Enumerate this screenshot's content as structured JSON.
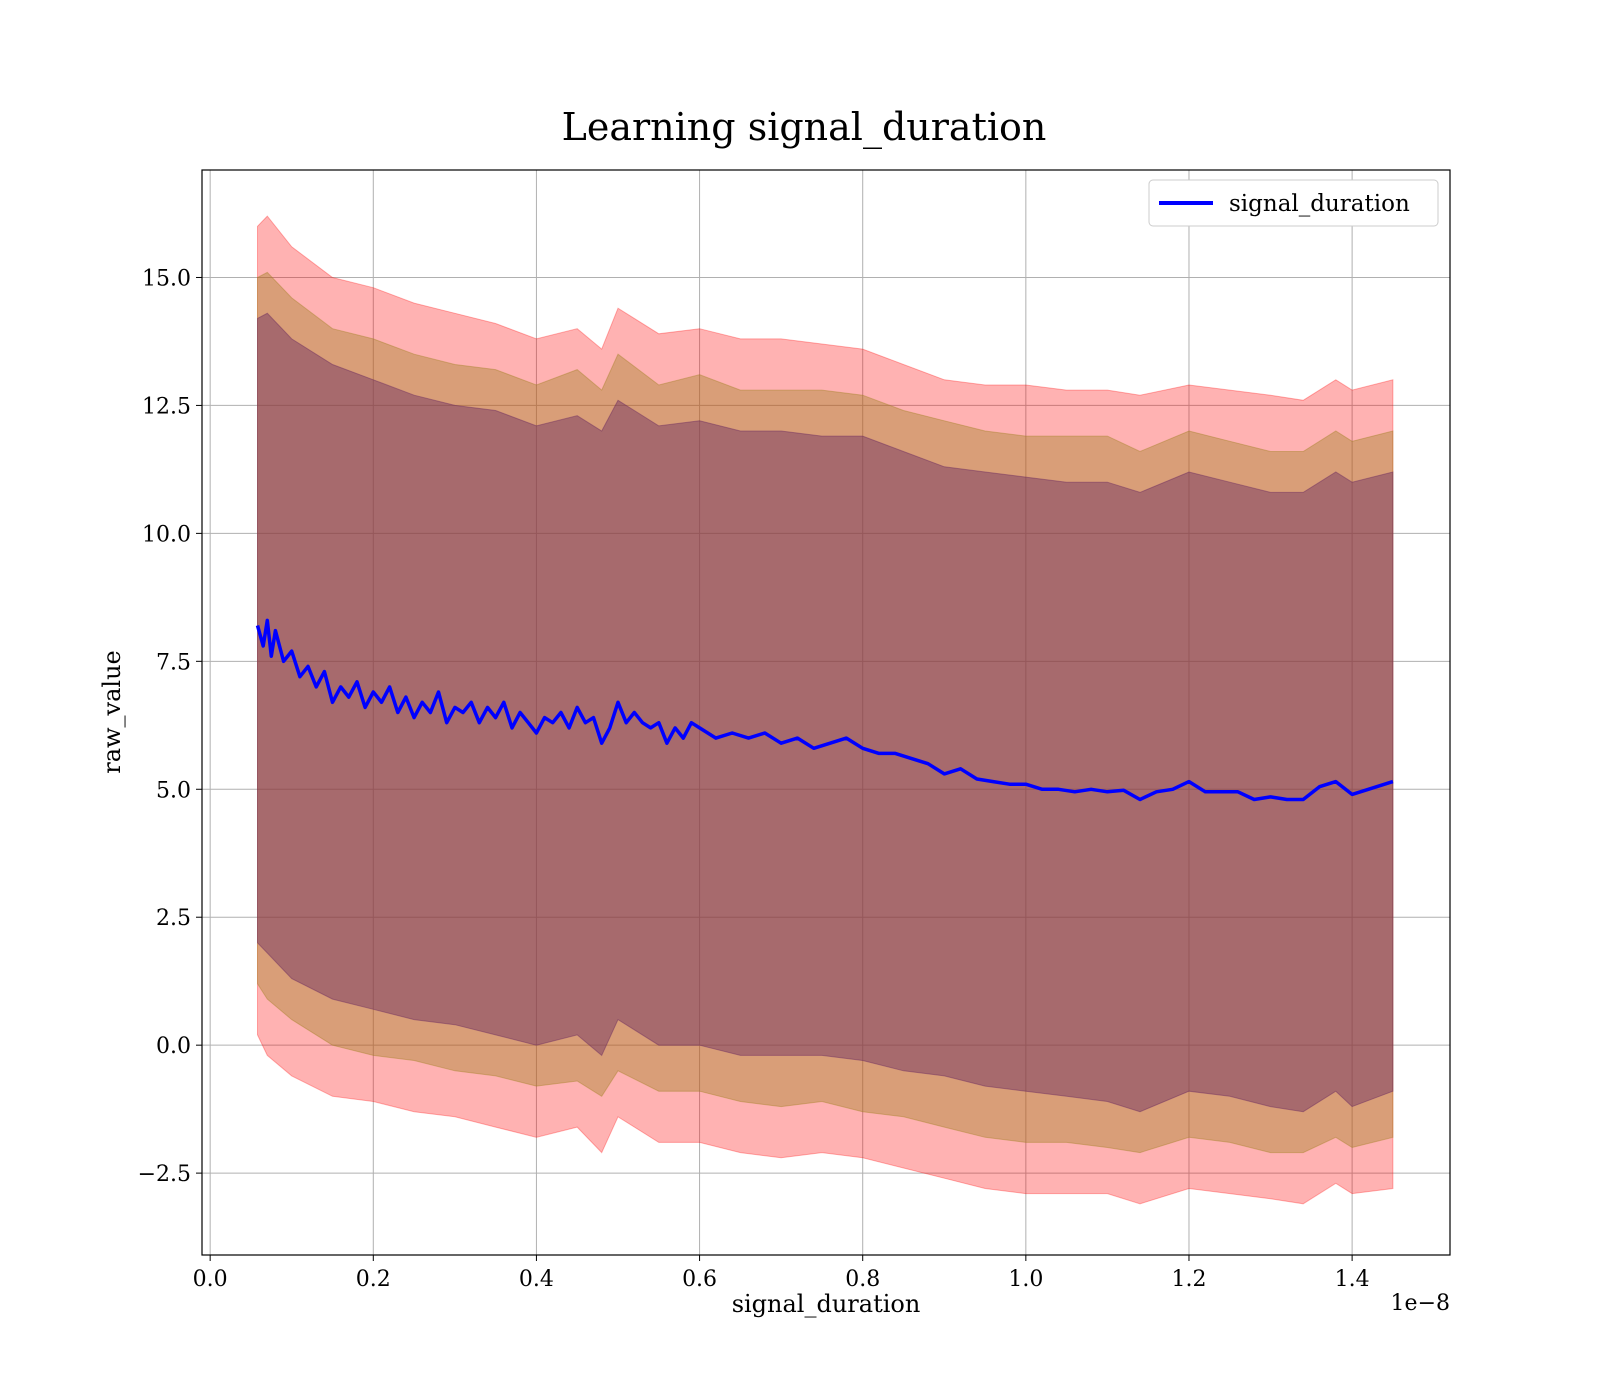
{
  "chart_data": {
    "type": "line",
    "title": "Learning signal_duration",
    "xlabel": "signal_duration",
    "ylabel": "raw_value",
    "x_offset_label": "1e−8",
    "xlim": [
      -0.01,
      1.52
    ],
    "ylim": [
      -4.1,
      17.1
    ],
    "x_ticks": [
      0.0,
      0.2,
      0.4,
      0.6,
      0.8,
      1.0,
      1.2,
      1.4
    ],
    "x_tick_labels": [
      "0.0",
      "0.2",
      "0.4",
      "0.6",
      "0.8",
      "1.0",
      "1.2",
      "1.4"
    ],
    "y_ticks": [
      -2.5,
      0.0,
      2.5,
      5.0,
      7.5,
      10.0,
      12.5,
      15.0
    ],
    "y_tick_labels": [
      "−2.5",
      "0.0",
      "2.5",
      "5.0",
      "7.5",
      "10.0",
      "12.5",
      "15.0"
    ],
    "grid": true,
    "legend_position": "top-right",
    "series": [
      {
        "name": "signal_duration",
        "color": "#0000ff",
        "x": [
          0.058,
          0.065,
          0.07,
          0.075,
          0.08,
          0.09,
          0.1,
          0.11,
          0.12,
          0.13,
          0.14,
          0.15,
          0.16,
          0.17,
          0.18,
          0.19,
          0.2,
          0.21,
          0.22,
          0.23,
          0.24,
          0.25,
          0.26,
          0.27,
          0.28,
          0.29,
          0.3,
          0.31,
          0.32,
          0.33,
          0.34,
          0.35,
          0.36,
          0.37,
          0.38,
          0.39,
          0.4,
          0.41,
          0.42,
          0.43,
          0.44,
          0.45,
          0.46,
          0.47,
          0.48,
          0.49,
          0.5,
          0.51,
          0.52,
          0.53,
          0.54,
          0.55,
          0.56,
          0.57,
          0.58,
          0.59,
          0.6,
          0.62,
          0.64,
          0.66,
          0.68,
          0.7,
          0.72,
          0.74,
          0.76,
          0.78,
          0.8,
          0.82,
          0.84,
          0.86,
          0.88,
          0.9,
          0.92,
          0.94,
          0.96,
          0.98,
          1.0,
          1.02,
          1.04,
          1.06,
          1.08,
          1.1,
          1.12,
          1.14,
          1.16,
          1.18,
          1.2,
          1.22,
          1.24,
          1.26,
          1.28,
          1.3,
          1.32,
          1.34,
          1.36,
          1.38,
          1.4,
          1.42,
          1.45
        ],
        "y": [
          8.2,
          7.8,
          8.3,
          7.6,
          8.1,
          7.5,
          7.7,
          7.2,
          7.4,
          7.0,
          7.3,
          6.7,
          7.0,
          6.8,
          7.1,
          6.6,
          6.9,
          6.7,
          7.0,
          6.5,
          6.8,
          6.4,
          6.7,
          6.5,
          6.9,
          6.3,
          6.6,
          6.5,
          6.7,
          6.3,
          6.6,
          6.4,
          6.7,
          6.2,
          6.5,
          6.3,
          6.1,
          6.4,
          6.3,
          6.5,
          6.2,
          6.6,
          6.3,
          6.4,
          5.9,
          6.2,
          6.7,
          6.3,
          6.5,
          6.3,
          6.2,
          6.3,
          5.9,
          6.2,
          6.0,
          6.3,
          6.2,
          6.0,
          6.1,
          6.0,
          6.1,
          5.9,
          6.0,
          5.8,
          5.9,
          6.0,
          5.8,
          5.7,
          5.7,
          5.6,
          5.5,
          5.3,
          5.4,
          5.2,
          5.15,
          5.1,
          5.1,
          5.0,
          5.0,
          4.95,
          5.0,
          4.95,
          4.98,
          4.8,
          4.95,
          5.0,
          5.15,
          4.95,
          4.95,
          4.95,
          4.8,
          4.85,
          4.8,
          4.8,
          5.05,
          5.15,
          4.9,
          5.0,
          5.15
        ]
      }
    ],
    "bands": [
      {
        "color": "#ff0000",
        "opacity": 0.3,
        "x": [
          0.058,
          0.07,
          0.1,
          0.15,
          0.2,
          0.25,
          0.3,
          0.35,
          0.4,
          0.45,
          0.48,
          0.5,
          0.55,
          0.6,
          0.65,
          0.7,
          0.75,
          0.8,
          0.85,
          0.9,
          0.95,
          1.0,
          1.05,
          1.1,
          1.14,
          1.2,
          1.25,
          1.3,
          1.34,
          1.38,
          1.4,
          1.45
        ],
        "upper": [
          16.0,
          16.2,
          15.6,
          15.0,
          14.8,
          14.5,
          14.3,
          14.1,
          13.8,
          14.0,
          13.6,
          14.4,
          13.9,
          14.0,
          13.8,
          13.8,
          13.7,
          13.6,
          13.3,
          13.0,
          12.9,
          12.9,
          12.8,
          12.8,
          12.7,
          12.9,
          12.8,
          12.7,
          12.6,
          13.0,
          12.8,
          13.0
        ],
        "lower": [
          0.2,
          -0.2,
          -0.6,
          -1.0,
          -1.1,
          -1.3,
          -1.4,
          -1.6,
          -1.8,
          -1.6,
          -2.1,
          -1.4,
          -1.9,
          -1.9,
          -2.1,
          -2.2,
          -2.1,
          -2.2,
          -2.4,
          -2.6,
          -2.8,
          -2.9,
          -2.9,
          -2.9,
          -3.1,
          -2.8,
          -2.9,
          -3.0,
          -3.1,
          -2.7,
          -2.9,
          -2.8
        ]
      },
      {
        "color": "#a08020",
        "opacity": 0.4,
        "x": [
          0.058,
          0.07,
          0.1,
          0.15,
          0.2,
          0.25,
          0.3,
          0.35,
          0.4,
          0.45,
          0.48,
          0.5,
          0.55,
          0.6,
          0.65,
          0.7,
          0.75,
          0.8,
          0.85,
          0.9,
          0.95,
          1.0,
          1.05,
          1.1,
          1.14,
          1.2,
          1.25,
          1.3,
          1.34,
          1.38,
          1.4,
          1.45
        ],
        "upper": [
          15.0,
          15.1,
          14.6,
          14.0,
          13.8,
          13.5,
          13.3,
          13.2,
          12.9,
          13.2,
          12.8,
          13.5,
          12.9,
          13.1,
          12.8,
          12.8,
          12.8,
          12.7,
          12.4,
          12.2,
          12.0,
          11.9,
          11.9,
          11.9,
          11.6,
          12.0,
          11.8,
          11.6,
          11.6,
          12.0,
          11.8,
          12.0
        ],
        "lower": [
          1.2,
          0.9,
          0.5,
          0.0,
          -0.2,
          -0.3,
          -0.5,
          -0.6,
          -0.8,
          -0.7,
          -1.0,
          -0.5,
          -0.9,
          -0.9,
          -1.1,
          -1.2,
          -1.1,
          -1.3,
          -1.4,
          -1.6,
          -1.8,
          -1.9,
          -1.9,
          -2.0,
          -2.1,
          -1.8,
          -1.9,
          -2.1,
          -2.1,
          -1.8,
          -2.0,
          -1.8
        ]
      },
      {
        "color": "#6b2a60",
        "opacity": 0.45,
        "x": [
          0.058,
          0.07,
          0.1,
          0.15,
          0.2,
          0.25,
          0.3,
          0.35,
          0.4,
          0.45,
          0.48,
          0.5,
          0.55,
          0.6,
          0.65,
          0.7,
          0.75,
          0.8,
          0.85,
          0.9,
          0.95,
          1.0,
          1.05,
          1.1,
          1.14,
          1.2,
          1.25,
          1.3,
          1.34,
          1.38,
          1.4,
          1.45
        ],
        "upper": [
          14.2,
          14.3,
          13.8,
          13.3,
          13.0,
          12.7,
          12.5,
          12.4,
          12.1,
          12.3,
          12.0,
          12.6,
          12.1,
          12.2,
          12.0,
          12.0,
          11.9,
          11.9,
          11.6,
          11.3,
          11.2,
          11.1,
          11.0,
          11.0,
          10.8,
          11.2,
          11.0,
          10.8,
          10.8,
          11.2,
          11.0,
          11.2
        ],
        "lower": [
          2.0,
          1.8,
          1.3,
          0.9,
          0.7,
          0.5,
          0.4,
          0.2,
          0.0,
          0.2,
          -0.2,
          0.5,
          0.0,
          0.0,
          -0.2,
          -0.2,
          -0.2,
          -0.3,
          -0.5,
          -0.6,
          -0.8,
          -0.9,
          -1.0,
          -1.1,
          -1.3,
          -0.9,
          -1.0,
          -1.2,
          -1.3,
          -0.9,
          -1.2,
          -0.9
        ]
      }
    ]
  }
}
